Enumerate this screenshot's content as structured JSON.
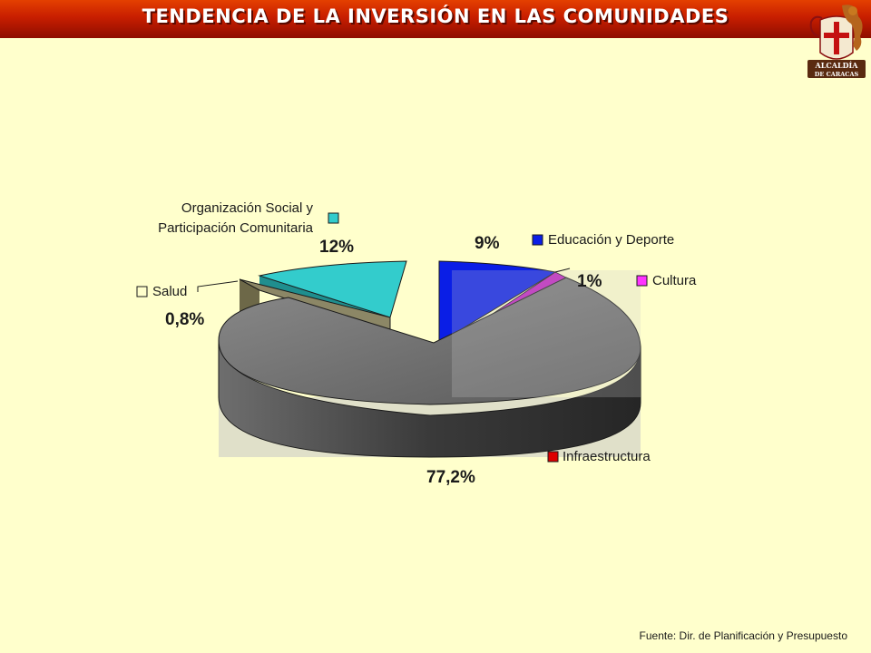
{
  "header": {
    "title": "TENDENCIA DE LA INVERSIÓN EN LAS COMUNIDADES",
    "logo_line1": "ALCALDÍA",
    "logo_line2": "DE CARACAS"
  },
  "chart_data": {
    "type": "pie",
    "three_d": true,
    "slices": [
      {
        "name": "Educación y Deporte",
        "value": 9,
        "label": "9%",
        "color": "#0a1ee6"
      },
      {
        "name": "Cultura",
        "value": 1,
        "label": "1%",
        "color": "#ff33ff"
      },
      {
        "name": "Infraestructura",
        "value": 77.2,
        "label": "77,2%",
        "color": "#3a3a3a",
        "legend_color": "#dd0000"
      },
      {
        "name": "Salud",
        "value": 0.8,
        "label": "0,8%",
        "color": "#8c8766",
        "legend_color": "#ffffcc"
      },
      {
        "name": "Organización Social y Participación Comunitaria",
        "name_lines": [
          "Organización Social y",
          "Participación Comunitaria"
        ],
        "value": 12,
        "label": "12%",
        "color": "#33cccc"
      }
    ]
  },
  "footer": {
    "source": "Fuente: Dir. de Planificación y Presupuesto"
  }
}
